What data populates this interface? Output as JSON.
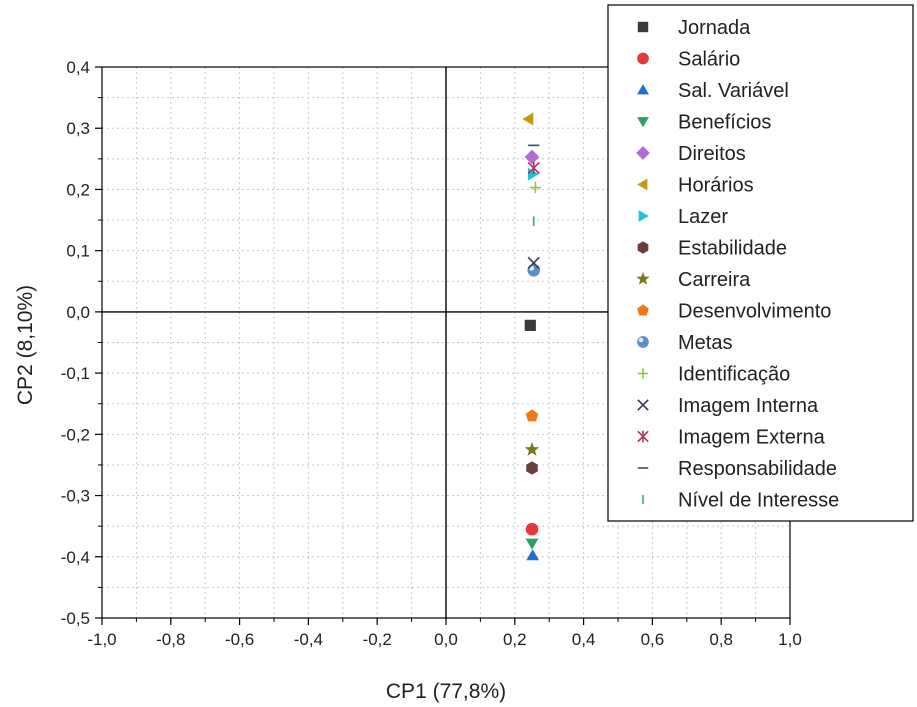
{
  "chart_data": {
    "type": "scatter",
    "xlabel": "CP1 (77,8%)",
    "ylabel": "CP2 (8,10%)",
    "xlim": [
      -1.0,
      1.0
    ],
    "ylim": [
      -0.5,
      0.4
    ],
    "x_ticks": [
      -1.0,
      -0.8,
      -0.6,
      -0.4,
      -0.2,
      0.0,
      0.2,
      0.4,
      0.6,
      0.8,
      1.0
    ],
    "x_tick_labels": [
      "-1,0",
      "-0,8",
      "-0,6",
      "-0,4",
      "-0,2",
      "0,0",
      "0,2",
      "0,4",
      "0,6",
      "0,8",
      "1,0"
    ],
    "y_ticks": [
      0.4,
      0.3,
      0.2,
      0.1,
      0.0,
      -0.1,
      -0.2,
      -0.3,
      -0.4,
      -0.5
    ],
    "y_tick_labels": [
      "0,4",
      "0,3",
      "0,2",
      "0,1",
      "0,0",
      "-0,1",
      "-0,2",
      "-0,3",
      "-0,4",
      "-0,5"
    ],
    "grid": true,
    "legend_position": "top-right",
    "series": [
      {
        "name": "Jornada",
        "x": 0.245,
        "y": -0.022,
        "marker": "square",
        "color": "#3a3a3a"
      },
      {
        "name": "Salário",
        "x": 0.25,
        "y": -0.355,
        "marker": "circle",
        "color": "#e5383b"
      },
      {
        "name": "Sal. Variável",
        "x": 0.252,
        "y": -0.398,
        "marker": "triangle-up",
        "color": "#1f6fd1"
      },
      {
        "name": "Benefícios",
        "x": 0.25,
        "y": -0.378,
        "marker": "triangle-down",
        "color": "#2e9e6b"
      },
      {
        "name": "Direitos",
        "x": 0.25,
        "y": 0.253,
        "marker": "diamond",
        "color": "#b46bd6"
      },
      {
        "name": "Horários",
        "x": 0.24,
        "y": 0.315,
        "marker": "triangle-left",
        "color": "#c49a12"
      },
      {
        "name": "Lazer",
        "x": 0.252,
        "y": 0.225,
        "marker": "triangle-right",
        "color": "#1fc4d6"
      },
      {
        "name": "Estabilidade",
        "x": 0.25,
        "y": -0.255,
        "marker": "hexagon",
        "color": "#6a3d3d"
      },
      {
        "name": "Carreira",
        "x": 0.25,
        "y": -0.225,
        "marker": "star",
        "color": "#7a7a1a"
      },
      {
        "name": "Desenvolvimento",
        "x": 0.25,
        "y": -0.17,
        "marker": "pentagon",
        "color": "#f07818"
      },
      {
        "name": "Metas",
        "x": 0.255,
        "y": 0.068,
        "marker": "sphere",
        "color": "#5b8fc9"
      },
      {
        "name": "Identificação",
        "x": 0.26,
        "y": 0.203,
        "marker": "plus",
        "color": "#8cc63f"
      },
      {
        "name": "Imagem Interna",
        "x": 0.255,
        "y": 0.08,
        "marker": "x",
        "color": "#3a3a55"
      },
      {
        "name": "Imagem Externa",
        "x": 0.255,
        "y": 0.235,
        "marker": "asterisk",
        "color": "#b03060"
      },
      {
        "name": "Responsabilidade",
        "x": 0.255,
        "y": 0.272,
        "marker": "hline",
        "color": "#2a4d7a"
      },
      {
        "name": "Nível de Interesse",
        "x": 0.255,
        "y": 0.148,
        "marker": "vline",
        "color": "#2ab0a0"
      }
    ]
  }
}
